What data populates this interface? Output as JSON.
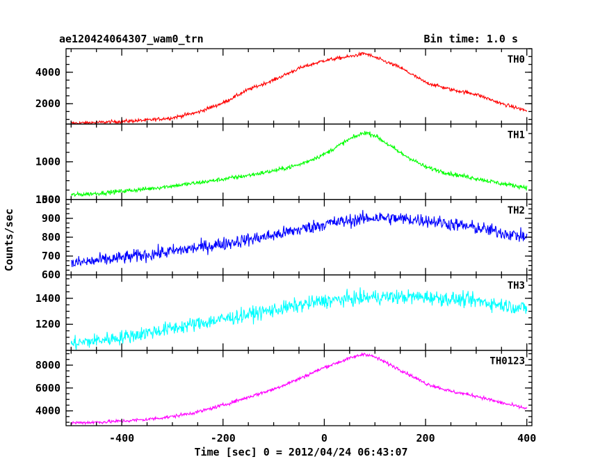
{
  "chart_data": {
    "type": "line",
    "title": "ae120424064307_wam0_trn",
    "subtitle": "Bin time: 1.0 s",
    "xlabel": "Time [sec] 0 = 2012/04/24 06:43:07",
    "ylabel": "Counts/sec",
    "xlim": [
      -510,
      410
    ],
    "x_ticks": [
      "-400",
      "-200",
      "0",
      "200",
      "400"
    ],
    "x_tick_values": [
      -400,
      -200,
      0,
      200,
      400
    ],
    "grid": false,
    "panels": [
      {
        "name": "TH0",
        "color": "#ff0000",
        "ylim": [
          700,
          5500
        ],
        "y_ticks": [
          "2000",
          "4000"
        ],
        "y_tick_values": [
          2000,
          4000
        ],
        "x": [
          -500,
          -450,
          -400,
          -350,
          -300,
          -250,
          -200,
          -150,
          -100,
          -50,
          0,
          50,
          80,
          100,
          150,
          200,
          250,
          300,
          350,
          400
        ],
        "y": [
          750,
          800,
          870,
          950,
          1100,
          1450,
          2050,
          2900,
          3500,
          4250,
          4750,
          5000,
          5200,
          4950,
          4300,
          3350,
          2900,
          2600,
          2000,
          1550
        ],
        "noise": 110
      },
      {
        "name": "TH1",
        "color": "#00ff00",
        "ylim": [
          500,
          1500
        ],
        "y_ticks": [
          "500",
          "1000"
        ],
        "y_tick_values": [
          500,
          1000
        ],
        "x": [
          -500,
          -450,
          -400,
          -350,
          -300,
          -250,
          -200,
          -150,
          -100,
          -50,
          0,
          50,
          80,
          100,
          150,
          200,
          250,
          300,
          350,
          400
        ],
        "y": [
          560,
          580,
          610,
          640,
          680,
          720,
          770,
          820,
          880,
          960,
          1100,
          1300,
          1390,
          1350,
          1120,
          930,
          840,
          780,
          710,
          660
        ],
        "noise": 28
      },
      {
        "name": "TH2",
        "color": "#0000ff",
        "ylim": [
          600,
          1000
        ],
        "y_ticks": [
          "600",
          "700",
          "800",
          "900",
          "1000"
        ],
        "y_tick_values": [
          600,
          700,
          800,
          900,
          1000
        ],
        "x": [
          -500,
          -400,
          -300,
          -200,
          -100,
          0,
          100,
          200,
          300,
          400
        ],
        "y": [
          660,
          690,
          725,
          765,
          810,
          870,
          905,
          890,
          850,
          800
        ],
        "noise": 35
      },
      {
        "name": "TH3",
        "color": "#00ffff",
        "ylim": [
          1000,
          1580
        ],
        "y_ticks": [
          "1200",
          "1400"
        ],
        "y_tick_values": [
          1200,
          1400
        ],
        "x": [
          -500,
          -400,
          -300,
          -200,
          -100,
          0,
          100,
          200,
          300,
          400
        ],
        "y": [
          1050,
          1100,
          1170,
          1240,
          1310,
          1380,
          1410,
          1410,
          1380,
          1320
        ],
        "noise": 55
      },
      {
        "name": "TH0123",
        "color": "#ff00ff",
        "ylim": [
          2700,
          9300
        ],
        "y_ticks": [
          "4000",
          "6000",
          "8000"
        ],
        "y_tick_values": [
          4000,
          6000,
          8000
        ],
        "x": [
          -500,
          -450,
          -400,
          -350,
          -300,
          -250,
          -200,
          -150,
          -100,
          -50,
          0,
          50,
          80,
          100,
          150,
          200,
          250,
          300,
          350,
          400
        ],
        "y": [
          2950,
          3000,
          3100,
          3250,
          3500,
          3900,
          4500,
          5200,
          5900,
          6800,
          7800,
          8600,
          9000,
          8700,
          7600,
          6400,
          5700,
          5300,
          4700,
          4200
        ],
        "noise": 150
      }
    ]
  }
}
